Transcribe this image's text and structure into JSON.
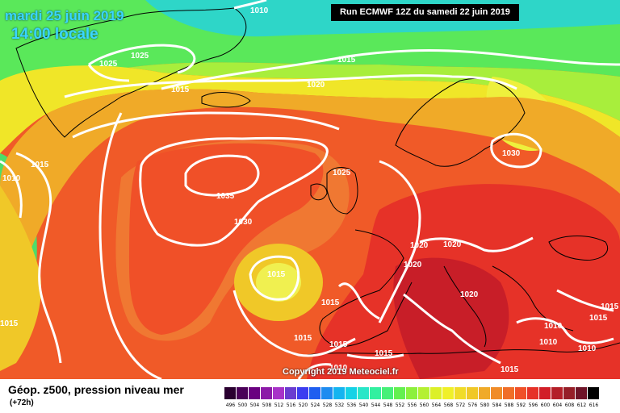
{
  "header": {
    "date": "mardi 25 juin 2019",
    "time": "14:00 locale",
    "run": "Run ECMWF 12Z du samedi 22 juin 2019"
  },
  "copyright": "Copyright 2019 Meteociel.fr",
  "legend": {
    "title": "Géop. z500, pression niveau mer",
    "subtitle": "(+72h)",
    "ticks": [
      "496",
      "500",
      "504",
      "508",
      "512",
      "516",
      "520",
      "524",
      "528",
      "532",
      "536",
      "540",
      "544",
      "548",
      "552",
      "556",
      "560",
      "564",
      "568",
      "572",
      "576",
      "580",
      "584",
      "588",
      "592",
      "596",
      "600",
      "604",
      "608",
      "612",
      "616"
    ],
    "colors": [
      "#2a0030",
      "#4a0058",
      "#6a0080",
      "#8c1aa8",
      "#a832c8",
      "#6a3cd0",
      "#3c3cf0",
      "#1e5ef0",
      "#1e8cf0",
      "#14b4f0",
      "#14d2e6",
      "#28e6c8",
      "#32f0a0",
      "#46f078",
      "#64f050",
      "#8cf03c",
      "#b4f032",
      "#dcf028",
      "#f0f028",
      "#f0dc28",
      "#f0c828",
      "#f0aa28",
      "#f08c28",
      "#f06e28",
      "#f05028",
      "#e63228",
      "#d21e28",
      "#b41e28",
      "#961e28",
      "#6e1428",
      "#000000"
    ]
  },
  "isobar_labels": [
    "1010",
    "1025",
    "1025",
    "1015",
    "1015",
    "1020",
    "1010",
    "1015",
    "1035",
    "1030",
    "1025",
    "1030",
    "1020",
    "1020",
    "1020",
    "1015",
    "1020",
    "1015",
    "1015",
    "1015",
    "1015",
    "1010",
    "1010",
    "1015",
    "1015",
    "1015",
    "1010",
    "1010",
    "1015"
  ]
}
